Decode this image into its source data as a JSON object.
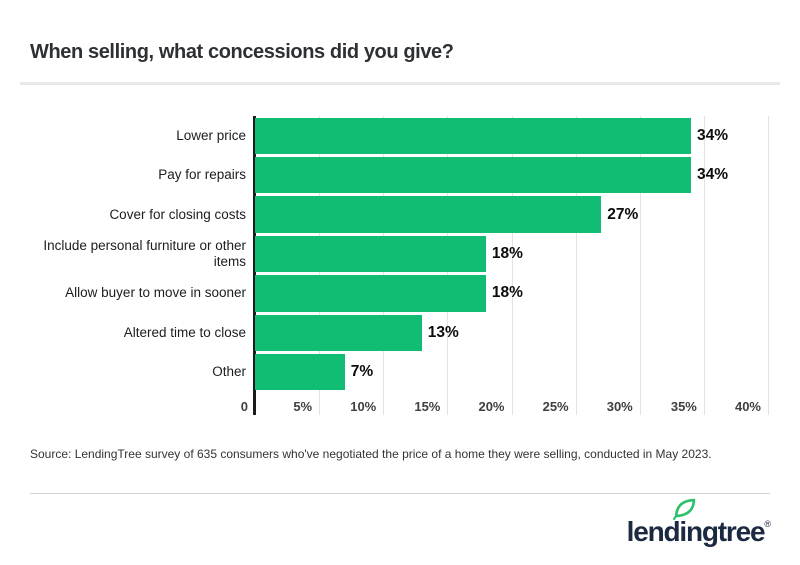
{
  "header": {
    "title": "When selling, what concessions did you give?"
  },
  "chart_data": {
    "type": "bar",
    "orientation": "horizontal",
    "title": "When selling, what concessions did you give?",
    "categories": [
      "Lower price",
      "Pay for repairs",
      "Cover for closing costs",
      "Include personal furniture or other items",
      "Allow buyer to move in sooner",
      "Altered time to close",
      "Other"
    ],
    "values": [
      34,
      34,
      27,
      18,
      18,
      13,
      7
    ],
    "value_labels": [
      "34%",
      "34%",
      "27%",
      "18%",
      "18%",
      "13%",
      "7%"
    ],
    "x_ticks": [
      {
        "label": "0",
        "value": 0
      },
      {
        "label": "5%",
        "value": 5
      },
      {
        "label": "10%",
        "value": 10
      },
      {
        "label": "15%",
        "value": 15
      },
      {
        "label": "20%",
        "value": 20
      },
      {
        "label": "25%",
        "value": 25
      },
      {
        "label": "30%",
        "value": 30
      },
      {
        "label": "35%",
        "value": 35
      },
      {
        "label": "40%",
        "value": 40
      }
    ],
    "xlim": [
      0,
      40
    ],
    "xlabel": "",
    "ylabel": "",
    "grid": true,
    "legend": "none"
  },
  "footer": {
    "source": "Source: LendingTree survey of 635 consumers who've negotiated the price of a home they were selling, conducted in May 2023.",
    "logo_text": "lendingtree",
    "registered_mark": "®",
    "logo_icon": "leaf-icon"
  },
  "colors": {
    "bar": "#10bd72",
    "axis": "#1b1b1b",
    "gridline": "#e3e3e3",
    "leaf_green": "#2bc06a",
    "logo_navy": "#1b2a41",
    "title_text": "#2e3134"
  }
}
